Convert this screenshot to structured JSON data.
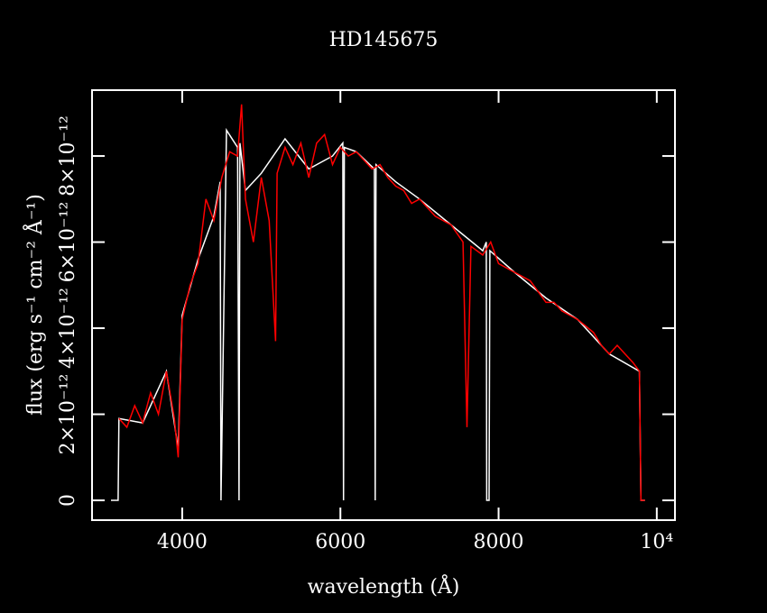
{
  "chart_data": {
    "type": "line",
    "title": "HD145675",
    "x_label": "wavelength (Å)",
    "y_label": "flux (erg s⁻¹ cm⁻² Å⁻¹)",
    "xlim": [
      2860,
      10230
    ],
    "ylim": [
      -4.6e-13,
      9.53e-12
    ],
    "xticks": [
      4000,
      6000,
      8000,
      {
        "value": 10000,
        "label": "10⁴"
      }
    ],
    "yticks": [
      0,
      {
        "value": 2e-12,
        "label": "2×10⁻¹²"
      },
      {
        "value": 4e-12,
        "label": "4×10⁻¹²"
      },
      {
        "value": 6e-12,
        "label": "6×10⁻¹²"
      },
      {
        "value": 8e-12,
        "label": "8×10⁻¹²"
      }
    ],
    "series": [
      {
        "color": "#ffffff",
        "x": [
          3100,
          3190,
          3200,
          3500,
          3800,
          3950,
          4000,
          4200,
          4400,
          4480,
          4490,
          4560,
          4700,
          4718,
          4730,
          4800,
          5000,
          5300,
          5600,
          5900,
          6030,
          6040,
          6050,
          6200,
          6430,
          6440,
          6450,
          6700,
          7000,
          7400,
          7800,
          7845,
          7850,
          7880,
          7890,
          8200,
          8600,
          9000,
          9400,
          9780,
          9800,
          9850
        ],
        "values": [
          0,
          0,
          1.9e-12,
          1.8e-12,
          3e-12,
          1.2e-12,
          4.3e-12,
          5.6e-12,
          6.6e-12,
          7.4e-12,
          0,
          8.6e-12,
          8.2e-12,
          0,
          8.3e-12,
          7.2e-12,
          7.6e-12,
          8.4e-12,
          7.7e-12,
          8e-12,
          8.3e-12,
          0,
          8.2e-12,
          8.1e-12,
          7.7e-12,
          0,
          7.8e-12,
          7.4e-12,
          7e-12,
          6.4e-12,
          5.8e-12,
          6e-12,
          0,
          0,
          5.8e-12,
          5.3e-12,
          4.7e-12,
          4.2e-12,
          3.4e-12,
          3e-12,
          0,
          0
        ]
      },
      {
        "color": "#ff0000",
        "x": [
          3200,
          3300,
          3400,
          3500,
          3600,
          3700,
          3800,
          3900,
          3950,
          4000,
          4100,
          4200,
          4300,
          4400,
          4500,
          4600,
          4700,
          4750,
          4800,
          4900,
          5000,
          5100,
          5180,
          5200,
          5300,
          5400,
          5500,
          5600,
          5700,
          5800,
          5900,
          6000,
          6100,
          6200,
          6300,
          6400,
          6500,
          6600,
          6700,
          6800,
          6900,
          7000,
          7200,
          7400,
          7550,
          7600,
          7650,
          7800,
          7900,
          8000,
          8200,
          8400,
          8600,
          8700,
          8800,
          9000,
          9200,
          9300,
          9400,
          9500,
          9600,
          9700,
          9780,
          9800,
          9850
        ],
        "values": [
          1.9e-12,
          1.7e-12,
          2.2e-12,
          1.8e-12,
          2.5e-12,
          2e-12,
          3e-12,
          1.9e-12,
          1e-12,
          4.2e-12,
          5e-12,
          5.5e-12,
          7e-12,
          6.5e-12,
          7.5e-12,
          8.1e-12,
          8e-12,
          9.2e-12,
          7e-12,
          6e-12,
          7.5e-12,
          6.5e-12,
          3.7e-12,
          7.6e-12,
          8.2e-12,
          7.8e-12,
          8.3e-12,
          7.5e-12,
          8.3e-12,
          8.5e-12,
          7.8e-12,
          8.2e-12,
          8e-12,
          8.1e-12,
          7.9e-12,
          7.7e-12,
          7.8e-12,
          7.5e-12,
          7.3e-12,
          7.2e-12,
          6.9e-12,
          7e-12,
          6.6e-12,
          6.4e-12,
          6e-12,
          1.7e-12,
          5.9e-12,
          5.7e-12,
          6e-12,
          5.5e-12,
          5.3e-12,
          5.1e-12,
          4.6e-12,
          4.6e-12,
          4.4e-12,
          4.2e-12,
          3.9e-12,
          3.6e-12,
          3.4e-12,
          3.6e-12,
          3.4e-12,
          3.2e-12,
          3e-12,
          0,
          0
        ]
      }
    ]
  }
}
